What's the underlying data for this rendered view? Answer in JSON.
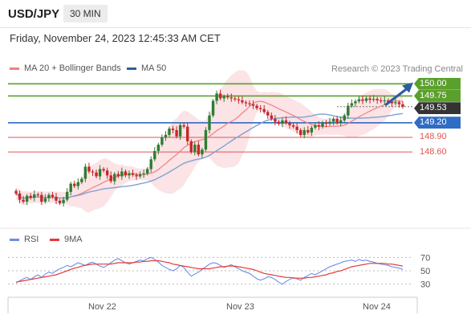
{
  "header": {
    "symbol": "USD/JPY",
    "timeframe": "30 MIN",
    "timestamp": "Friday, November 24, 2023 12:45:33 AM CET"
  },
  "legend": {
    "bb_label": "MA 20 + Bollinger Bands",
    "ma50_label": "MA 50",
    "copyright": "Research © 2023 Trading Central",
    "rsi_label": "RSI",
    "rsi9_label": "9MA"
  },
  "colors": {
    "up": "#2e7d32",
    "down": "#c62828",
    "ma20": "#f08080",
    "bb": "#fadadd",
    "ma50": "#7fa3d1",
    "green_line": "#5aa02c",
    "blue_line": "#2f6cc4",
    "red_line": "#e05555",
    "arrow": "#2d5f9e",
    "rsi": "#6b8ee8",
    "rsi9": "#e53935"
  },
  "levels": [
    {
      "value": "150.00",
      "price": 150.0,
      "kind": "green"
    },
    {
      "value": "149.75",
      "price": 149.75,
      "kind": "green"
    },
    {
      "value": "149.53",
      "price": 149.53,
      "kind": "current"
    },
    {
      "value": "149.20",
      "price": 149.2,
      "kind": "blue"
    },
    {
      "value": "148.90",
      "price": 148.9,
      "kind": "red"
    },
    {
      "value": "148.60",
      "price": 148.6,
      "kind": "red"
    }
  ],
  "rsi_axis": [
    "70",
    "50",
    "30"
  ],
  "x_labels": [
    "Nov 22",
    "Nov 23",
    "Nov 24"
  ],
  "chart_data": {
    "type": "candlestick",
    "price_range": [
      147.3,
      150.12
    ],
    "closes": [
      147.75,
      147.62,
      147.58,
      147.7,
      147.66,
      147.73,
      147.72,
      147.58,
      147.65,
      147.72,
      147.68,
      147.6,
      147.55,
      147.62,
      147.78,
      147.95,
      147.9,
      147.98,
      148.05,
      148.3,
      148.2,
      148.18,
      148.1,
      148.25,
      148.22,
      148.12,
      148.0,
      148.15,
      148.1,
      148.2,
      148.12,
      148.16,
      148.13,
      148.1,
      148.14,
      148.16,
      148.25,
      148.45,
      148.62,
      148.75,
      148.9,
      148.95,
      149.08,
      149.05,
      148.92,
      149.15,
      149.12,
      148.82,
      148.6,
      148.75,
      148.55,
      148.65,
      149.05,
      149.35,
      149.65,
      149.8,
      149.7,
      149.74,
      149.72,
      149.7,
      149.68,
      149.66,
      149.62,
      149.6,
      149.58,
      149.55,
      149.5,
      149.48,
      149.42,
      149.35,
      149.28,
      149.22,
      149.18,
      149.25,
      149.2,
      149.15,
      149.12,
      149.05,
      148.95,
      149.05,
      149.0,
      149.1,
      149.15,
      149.12,
      149.2,
      149.18,
      149.22,
      149.28,
      149.2,
      149.25,
      149.35,
      149.55,
      149.6,
      149.64,
      149.68,
      149.65,
      149.7,
      149.67,
      149.69,
      149.66,
      149.64,
      149.66,
      149.63,
      149.6,
      149.62,
      149.58,
      149.53
    ],
    "rsi_range": [
      20,
      80
    ],
    "rsi": [
      32,
      35,
      38,
      40,
      37,
      41,
      44,
      40,
      45,
      48,
      46,
      50,
      53,
      55,
      58,
      56,
      59,
      62,
      60,
      58,
      61,
      63,
      60,
      57,
      55,
      58,
      62,
      66,
      68,
      65,
      62,
      60,
      62,
      64,
      66,
      65,
      68,
      70,
      67,
      63,
      58,
      55,
      52,
      50,
      53,
      58,
      55,
      48,
      42,
      45,
      48,
      52,
      56,
      60,
      62,
      61,
      58,
      55,
      57,
      59,
      56,
      53,
      50,
      48,
      46,
      42,
      38,
      36,
      38,
      41,
      40,
      37,
      33,
      30,
      34,
      37,
      40,
      38,
      36,
      40,
      43,
      46,
      44,
      47,
      50,
      53,
      56,
      58,
      60,
      62,
      64,
      65,
      66,
      64,
      67,
      65,
      66,
      64,
      63,
      61,
      60,
      59,
      58,
      56,
      55,
      54,
      52
    ],
    "rsi_ma": [
      33,
      34,
      35,
      36,
      37,
      38,
      39,
      40,
      41,
      42,
      43,
      44,
      46,
      48,
      50,
      52,
      54,
      55,
      57,
      58,
      59,
      60,
      60,
      60,
      60,
      60,
      60,
      61,
      62,
      62,
      62,
      62,
      62,
      63,
      63,
      64,
      64,
      65,
      65,
      65,
      64,
      63,
      62,
      60,
      59,
      58,
      57,
      56,
      55,
      54,
      53,
      53,
      53,
      53,
      54,
      55,
      56,
      56,
      57,
      57,
      57,
      56,
      55,
      54,
      53,
      52,
      50,
      48,
      46,
      45,
      44,
      43,
      42,
      41,
      40,
      40,
      39,
      39,
      39,
      39,
      40,
      40,
      41,
      42,
      43,
      44,
      46,
      47,
      49,
      50,
      52,
      54,
      56,
      57,
      58,
      59,
      60,
      61,
      61,
      61,
      61,
      61,
      60,
      60,
      59,
      58,
      57
    ]
  }
}
